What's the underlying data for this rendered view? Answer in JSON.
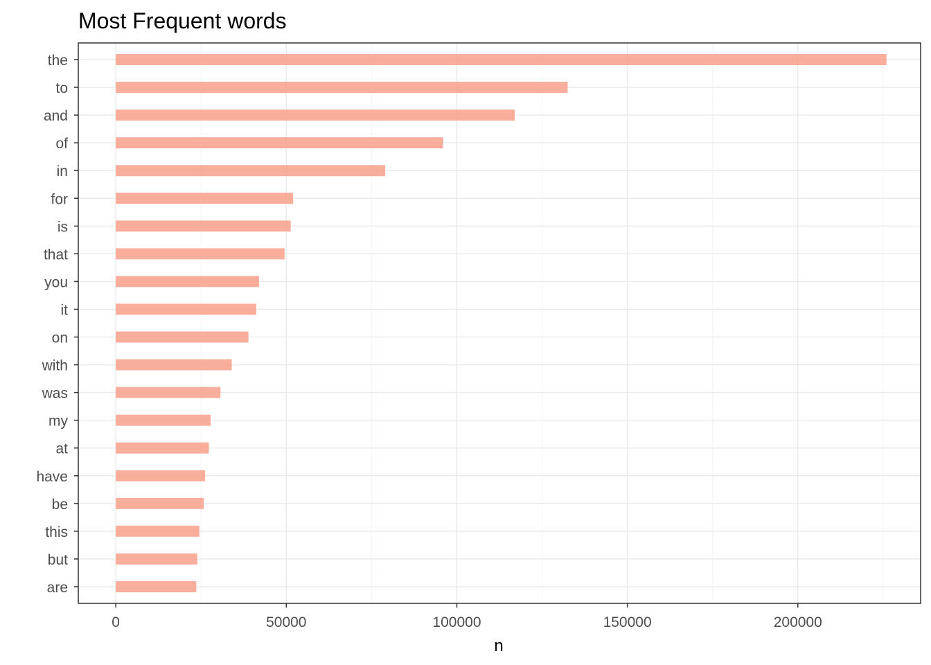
{
  "chart_data": {
    "type": "bar",
    "orientation": "horizontal",
    "title": "Most Frequent words",
    "xlabel": "n",
    "ylabel": "",
    "categories": [
      "the",
      "to",
      "and",
      "of",
      "in",
      "for",
      "is",
      "that",
      "you",
      "it",
      "on",
      "with",
      "was",
      "my",
      "at",
      "have",
      "be",
      "this",
      "but",
      "are"
    ],
    "values": [
      226000,
      132500,
      117000,
      96000,
      79000,
      52000,
      51300,
      49500,
      42000,
      41200,
      38900,
      34000,
      30700,
      27800,
      27300,
      26200,
      25800,
      24500,
      23900,
      23600
    ],
    "xlim": [
      -11000,
      236000
    ],
    "x_ticks": [
      0,
      50000,
      100000,
      150000,
      200000
    ],
    "x_tick_labels": [
      "0",
      "50000",
      "100000",
      "150000",
      "200000"
    ],
    "grid": true,
    "legend": "none",
    "colors": {
      "bar": "#f8a08a",
      "bar_opacity": 0.85,
      "grid_major": "#ebebeb",
      "grid_minor": "#f4f4f4",
      "panel_border": "#333333",
      "tick_text": "#4d4d4d"
    }
  }
}
